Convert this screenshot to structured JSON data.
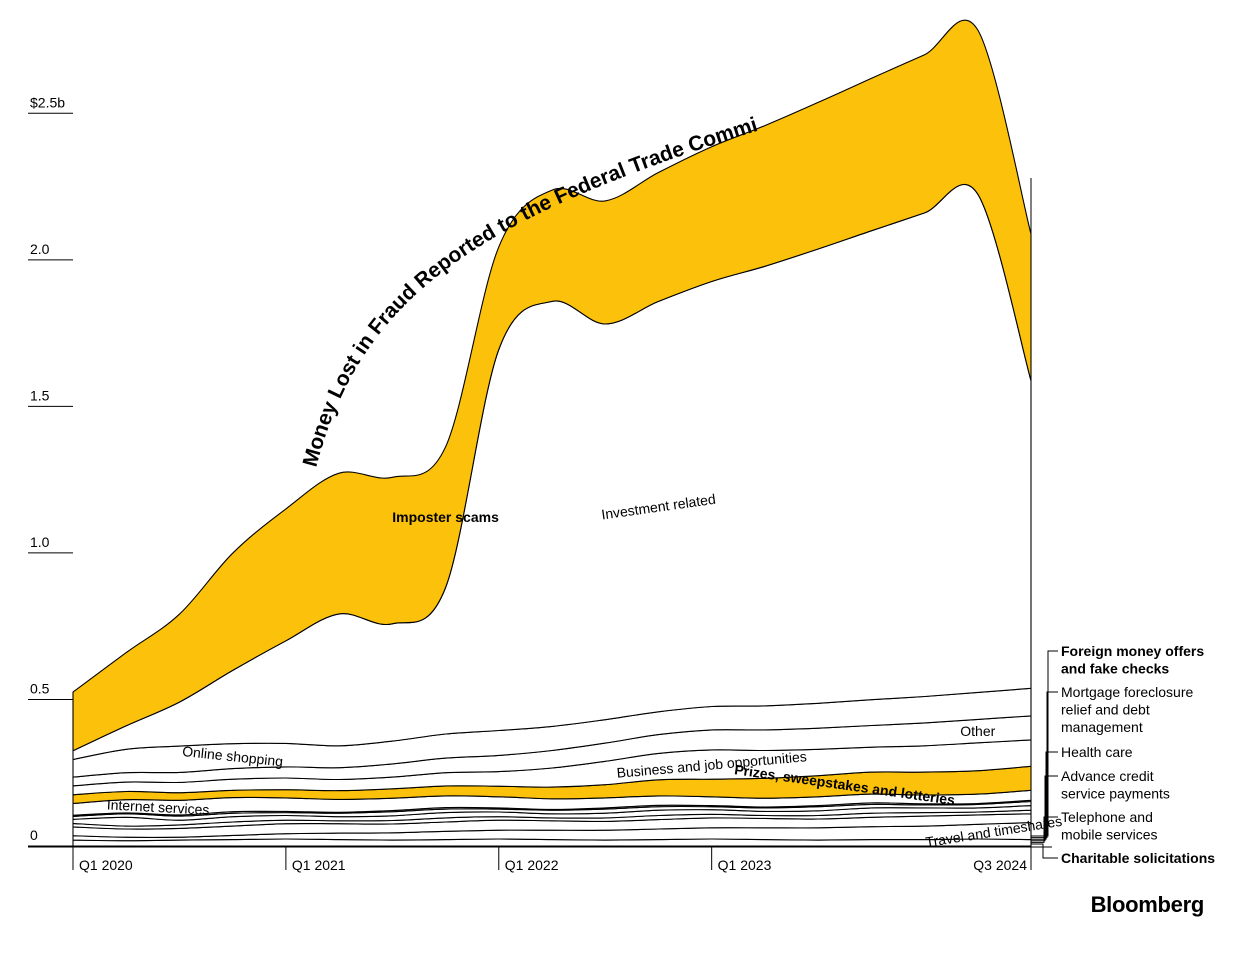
{
  "chart_data": {
    "type": "area",
    "title": "Money Lost in Fraud Reported to the Federal Trade Commission",
    "source": "Bloomberg",
    "ylabel": "",
    "xlabel": "",
    "ylim": [
      0,
      2.75
    ],
    "y_ticks": [
      {
        "value": 2.5,
        "label": "$2.5b"
      },
      {
        "value": 2.0,
        "label": "2.0"
      },
      {
        "value": 1.5,
        "label": "1.5"
      },
      {
        "value": 1.0,
        "label": "1.0"
      },
      {
        "value": 0.5,
        "label": "0.5"
      },
      {
        "value": 0,
        "label": "0"
      }
    ],
    "x_ticks": [
      {
        "value": 2020.0,
        "label": "Q1 2020"
      },
      {
        "value": 2021.0,
        "label": "Q1 2021"
      },
      {
        "value": 2022.0,
        "label": "Q1 2022"
      },
      {
        "value": 2023.0,
        "label": "Q1 2023"
      },
      {
        "value": 2024.5,
        "label": "Q3 2024"
      }
    ],
    "x": [
      2020.0,
      2020.25,
      2020.5,
      2020.75,
      2021.0,
      2021.25,
      2021.5,
      2021.75,
      2022.0,
      2022.25,
      2022.5,
      2022.75,
      2023.0,
      2023.25,
      2023.5,
      2023.75,
      2024.0,
      2024.25,
      2024.5
    ],
    "series": [
      {
        "name": "Telephone and mobile services",
        "values": [
          0.02,
          0.018,
          0.02,
          0.022,
          0.024,
          0.022,
          0.02,
          0.022,
          0.024,
          0.022,
          0.02,
          0.022,
          0.024,
          0.022,
          0.02,
          0.022,
          0.022,
          0.024,
          0.022
        ],
        "highlight": false
      },
      {
        "name": "Travel and timeshares",
        "values": [
          0.015,
          0.012,
          0.01,
          0.014,
          0.018,
          0.022,
          0.025,
          0.028,
          0.03,
          0.032,
          0.034,
          0.036,
          0.038,
          0.04,
          0.042,
          0.044,
          0.046,
          0.05,
          0.058
        ],
        "highlight": false
      },
      {
        "name": "Foreign money offers and fake checks",
        "values": [
          0.03,
          0.028,
          0.03,
          0.032,
          0.034,
          0.032,
          0.03,
          0.032,
          0.034,
          0.032,
          0.03,
          0.032,
          0.034,
          0.032,
          0.03,
          0.032,
          0.034,
          0.032,
          0.03
        ],
        "highlight": false
      },
      {
        "name": "Mortgage foreclosure relief and debt management",
        "values": [
          0.012,
          0.01,
          0.012,
          0.014,
          0.012,
          0.01,
          0.012,
          0.014,
          0.012,
          0.01,
          0.012,
          0.014,
          0.012,
          0.01,
          0.012,
          0.014,
          0.012,
          0.01,
          0.012
        ],
        "highlight": false
      },
      {
        "name": "Health care",
        "values": [
          0.014,
          0.03,
          0.016,
          0.018,
          0.016,
          0.014,
          0.016,
          0.018,
          0.016,
          0.014,
          0.016,
          0.018,
          0.016,
          0.014,
          0.016,
          0.018,
          0.016,
          0.014,
          0.016
        ],
        "highlight": false
      },
      {
        "name": "Advance credit service payments",
        "values": [
          0.01,
          0.012,
          0.014,
          0.012,
          0.01,
          0.012,
          0.014,
          0.012,
          0.01,
          0.012,
          0.014,
          0.012,
          0.01,
          0.012,
          0.014,
          0.012,
          0.01,
          0.012,
          0.014
        ],
        "highlight": false
      },
      {
        "name": "Charitable solicitations",
        "values": [
          0.004,
          0.003,
          0.004,
          0.005,
          0.004,
          0.003,
          0.004,
          0.005,
          0.004,
          0.003,
          0.004,
          0.005,
          0.004,
          0.003,
          0.004,
          0.005,
          0.004,
          0.003,
          0.004
        ],
        "highlight": false
      },
      {
        "name": "Internet services",
        "values": [
          0.04,
          0.045,
          0.05,
          0.048,
          0.046,
          0.044,
          0.042,
          0.04,
          0.038,
          0.036,
          0.034,
          0.032,
          0.03,
          0.03,
          0.03,
          0.03,
          0.03,
          0.032,
          0.034
        ],
        "highlight": false
      },
      {
        "name": "Prizes, sweepstakes and lotteries",
        "values": [
          0.03,
          0.028,
          0.026,
          0.025,
          0.028,
          0.03,
          0.032,
          0.034,
          0.036,
          0.04,
          0.045,
          0.055,
          0.06,
          0.068,
          0.072,
          0.075,
          0.078,
          0.08,
          0.082
        ],
        "highlight": true
      },
      {
        "name": "Business and job opportunities",
        "values": [
          0.03,
          0.032,
          0.035,
          0.038,
          0.04,
          0.038,
          0.04,
          0.045,
          0.05,
          0.065,
          0.08,
          0.09,
          0.1,
          0.095,
          0.09,
          0.085,
          0.09,
          0.095,
          0.09
        ],
        "highlight": false
      },
      {
        "name": "Other",
        "values": [
          0.03,
          0.032,
          0.034,
          0.036,
          0.038,
          0.04,
          0.045,
          0.05,
          0.055,
          0.06,
          0.062,
          0.064,
          0.068,
          0.07,
          0.072,
          0.074,
          0.078,
          0.08,
          0.082
        ],
        "highlight": false
      },
      {
        "name": "Online shopping",
        "values": [
          0.06,
          0.08,
          0.09,
          0.085,
          0.08,
          0.075,
          0.078,
          0.082,
          0.085,
          0.082,
          0.08,
          0.078,
          0.08,
          0.082,
          0.085,
          0.088,
          0.09,
          0.092,
          0.094
        ],
        "highlight": false
      },
      {
        "name": "Investment related",
        "values": [
          0.03,
          0.08,
          0.15,
          0.25,
          0.35,
          0.45,
          0.4,
          0.5,
          1.3,
          1.45,
          1.35,
          1.4,
          1.45,
          1.5,
          1.55,
          1.6,
          1.65,
          1.7,
          1.05
        ],
        "highlight": false
      },
      {
        "name": "Imposter scams",
        "values": [
          0.2,
          0.25,
          0.3,
          0.4,
          0.45,
          0.48,
          0.5,
          0.48,
          0.35,
          0.38,
          0.42,
          0.44,
          0.46,
          0.48,
          0.5,
          0.52,
          0.54,
          0.56,
          0.5
        ],
        "highlight": true
      }
    ],
    "annotations": [
      {
        "series": "Investment related",
        "text": "Investment related",
        "style": "normal"
      },
      {
        "series": "Imposter scams",
        "text": "Imposter scams",
        "style": "bold"
      },
      {
        "series": "Online shopping",
        "text": "Online shopping",
        "style": "normal"
      },
      {
        "series": "Internet services",
        "text": "Internet services",
        "style": "normal"
      },
      {
        "series": "Business and job opportunities",
        "text": "Business and job opportunities",
        "style": "normal"
      },
      {
        "series": "Prizes, sweepstakes and lotteries",
        "text": "Prizes, sweepstakes and lotteries",
        "style": "bold"
      },
      {
        "series": "Other",
        "text": "Other",
        "style": "normal"
      },
      {
        "series": "Travel and timeshares",
        "text": "Travel and timeshares",
        "style": "normal"
      }
    ],
    "legend": {
      "placement": "right",
      "items": [
        {
          "lines": [
            "Foreign money offers",
            "and fake checks"
          ],
          "style": "bold",
          "series": "Foreign money offers and fake checks"
        },
        {
          "lines": [
            "Mortgage foreclosure",
            "relief and debt",
            "management"
          ],
          "style": "normal",
          "series": "Mortgage foreclosure relief and debt management"
        },
        {
          "lines": [
            "Health care"
          ],
          "style": "normal",
          "series": "Health care"
        },
        {
          "lines": [
            "Advance credit",
            "service payments"
          ],
          "style": "normal",
          "series": "Advance credit service payments"
        },
        {
          "lines": [
            "Telephone and",
            "mobile services"
          ],
          "style": "normal",
          "series": "Telephone and mobile services"
        },
        {
          "lines": [
            "Charitable solicitations"
          ],
          "style": "bold",
          "series": "Charitable solicitations"
        }
      ]
    },
    "colors": {
      "highlight": "#fcc10a",
      "base": "#ffffff",
      "stroke": "#000000"
    }
  }
}
